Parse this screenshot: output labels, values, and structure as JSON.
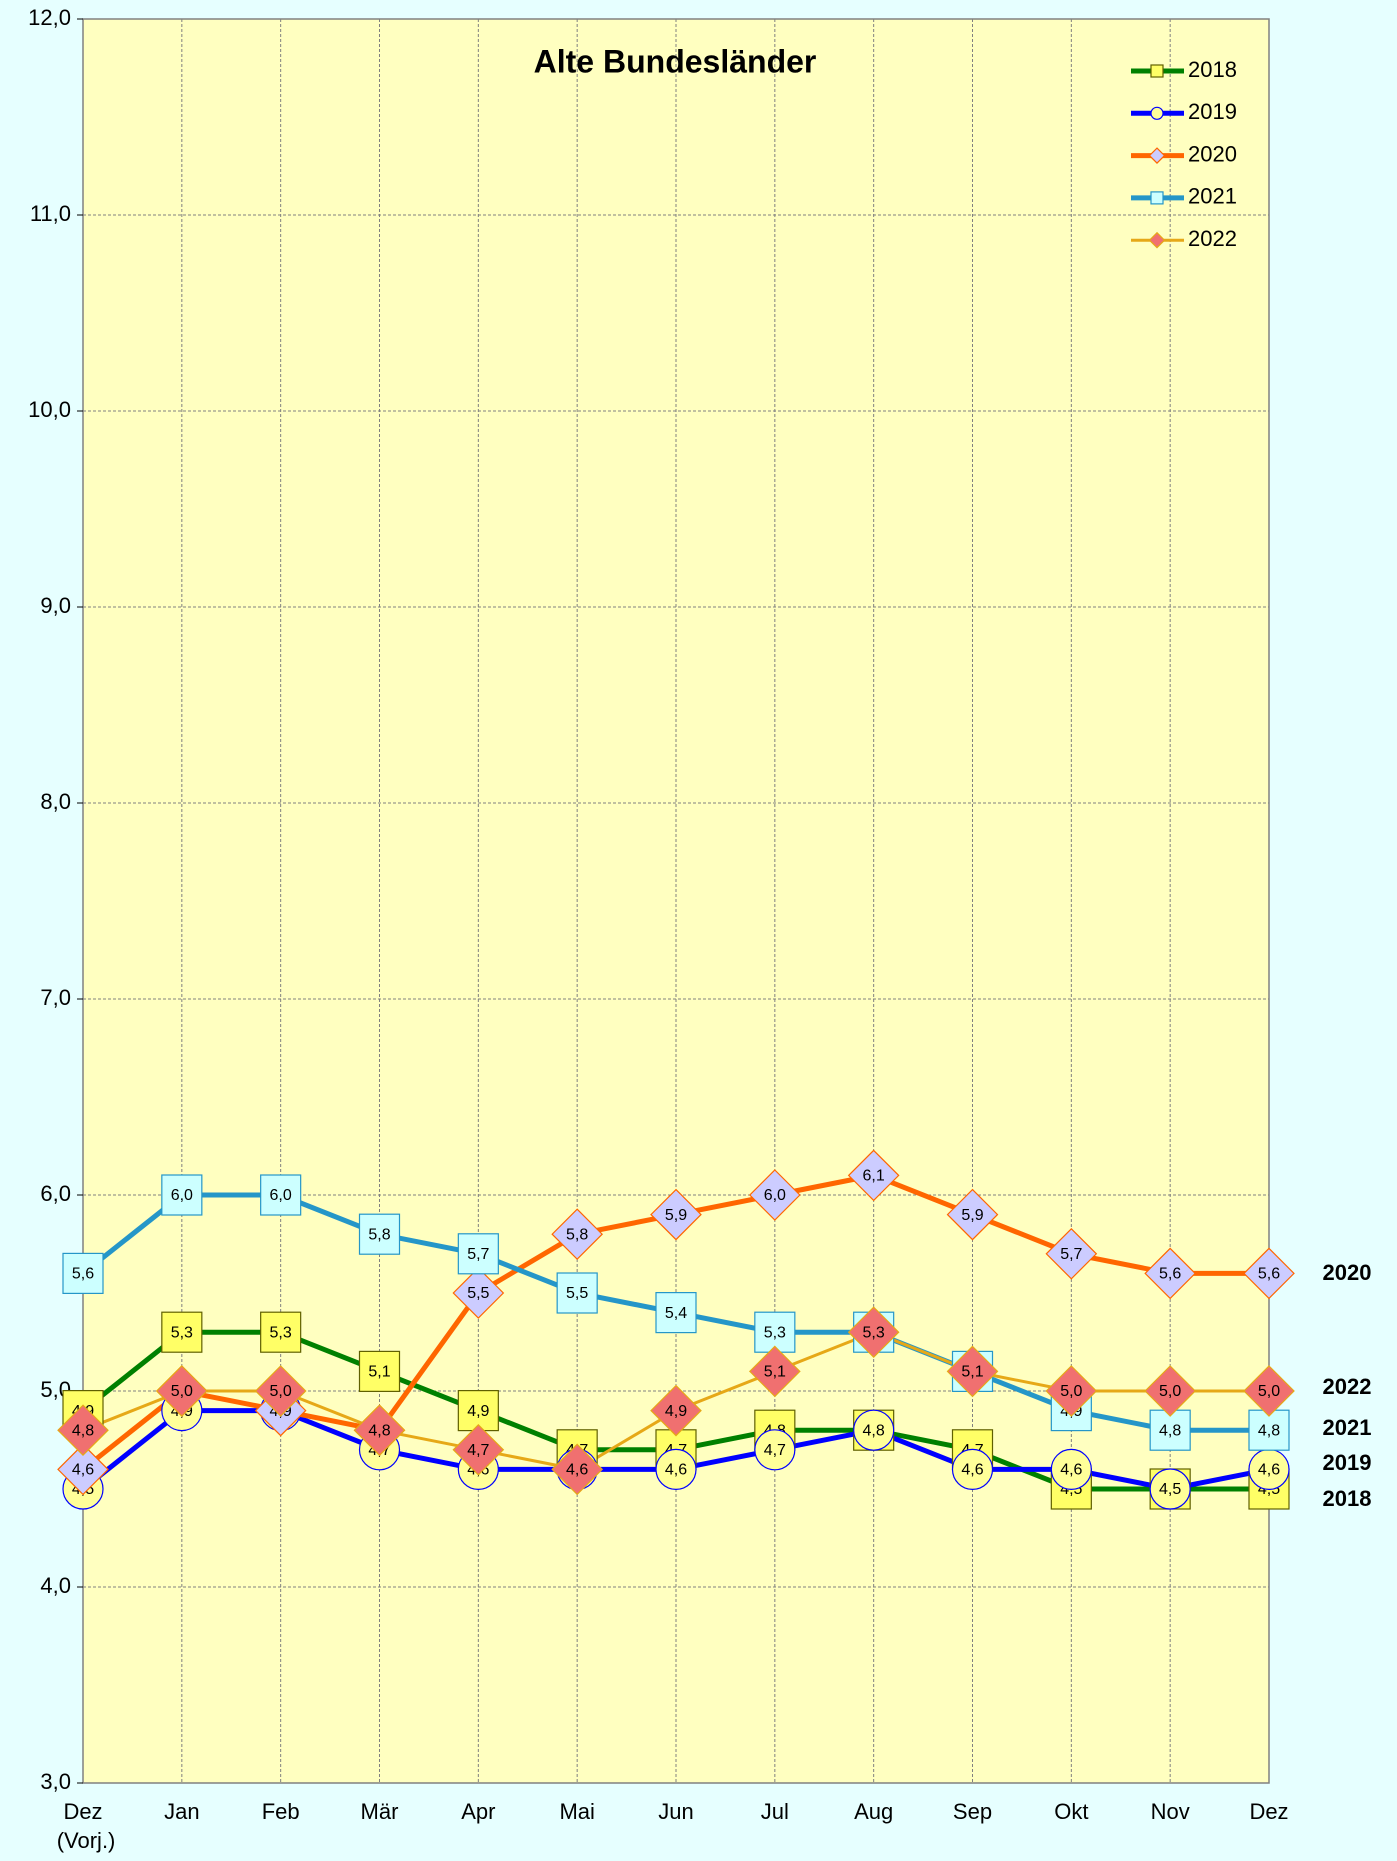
{
  "chart_data": {
    "type": "line",
    "title": "Alte Bundesländer",
    "categories": [
      "Dez (Vorj.)",
      "Jan",
      "Feb",
      "Mär",
      "Apr",
      "Mai",
      "Jun",
      "Jul",
      "Aug",
      "Sep",
      "Okt",
      "Nov",
      "Dez"
    ],
    "ylim": [
      3,
      12
    ],
    "yticks": [
      {
        "value": 3,
        "label": "3,0"
      },
      {
        "value": 4,
        "label": "4,0"
      },
      {
        "value": 5,
        "label": "5,0"
      },
      {
        "value": 6,
        "label": "6,0"
      },
      {
        "value": 7,
        "label": "7,0"
      },
      {
        "value": 8,
        "label": "8,0"
      },
      {
        "value": 9,
        "label": "9,0"
      },
      {
        "value": 10,
        "label": "10,0"
      },
      {
        "value": 11,
        "label": "11,0"
      },
      {
        "value": 12,
        "label": "12,0"
      }
    ],
    "grid": true,
    "legend": "top-right",
    "series": [
      {
        "name": "2018",
        "color": "#008000",
        "marker": "square",
        "marker_color": "#ffff66",
        "label_color": "#008000",
        "values": [
          4.9,
          5.3,
          5.3,
          5.1,
          4.9,
          4.7,
          4.7,
          4.8,
          4.8,
          4.7,
          4.5,
          4.5,
          4.5
        ],
        "value_labels": [
          "4,9",
          "5,3",
          "5,3",
          "5,1",
          "4,9",
          "4,7",
          "4,7",
          "4,8",
          "4,8",
          "4,7",
          "4,5",
          "4,5",
          "4,5"
        ]
      },
      {
        "name": "2019",
        "color": "#0000ff",
        "marker": "circle",
        "marker_color": "#ffff99",
        "label_color": "#0000ff",
        "values": [
          4.5,
          4.9,
          4.9,
          4.7,
          4.6,
          4.6,
          4.6,
          4.7,
          4.8,
          4.6,
          4.6,
          4.5,
          4.6
        ],
        "value_labels": [
          "4,5",
          "4,9",
          "4,9",
          "4,7",
          "4,6",
          "4,6",
          "4,6",
          "4,7",
          "4,8",
          "4,6",
          "4,6",
          "4,5",
          "4,6"
        ]
      },
      {
        "name": "2020",
        "color": "#ff6600",
        "marker": "diamond",
        "marker_color": "#ccccff",
        "label_color": "#e87722",
        "values": [
          4.6,
          5.0,
          4.9,
          4.8,
          5.5,
          5.8,
          5.9,
          6.0,
          6.1,
          5.9,
          5.7,
          5.6,
          5.6
        ],
        "value_labels": [
          "4,6",
          "5,0",
          "4,9",
          "4,8",
          "5,5",
          "5,8",
          "5,9",
          "6,0",
          "6,1",
          "5,9",
          "5,7",
          "5,6",
          "5,6"
        ]
      },
      {
        "name": "2021",
        "color": "#2596c8",
        "marker": "square",
        "marker_color": "#ccffff",
        "label_color": "#336699",
        "values": [
          5.6,
          6.0,
          6.0,
          5.8,
          5.7,
          5.5,
          5.4,
          5.3,
          5.3,
          5.1,
          4.9,
          4.8,
          4.8
        ],
        "value_labels": [
          "5,6",
          "6,0",
          "6,0",
          "5,8",
          "5,7",
          "5,5",
          "5,4",
          "5,3",
          "5,3",
          "5,1",
          "4,9",
          "4,8",
          "4,8"
        ]
      },
      {
        "name": "2022",
        "color": "#e6a817",
        "marker": "diamond",
        "marker_color": "#f07070",
        "label_color": "#c00000",
        "values": [
          4.8,
          5.0,
          5.0,
          4.8,
          4.7,
          4.6,
          4.9,
          5.1,
          5.3,
          5.1,
          5.0,
          5.0,
          5.0
        ],
        "value_labels": [
          "4,8",
          "5,0",
          "5,0",
          "4,8",
          "4,7",
          "4,6",
          "4,9",
          "5,1",
          "5,3",
          "5,1",
          "5,0",
          "5,0",
          "5,0"
        ]
      }
    ]
  }
}
